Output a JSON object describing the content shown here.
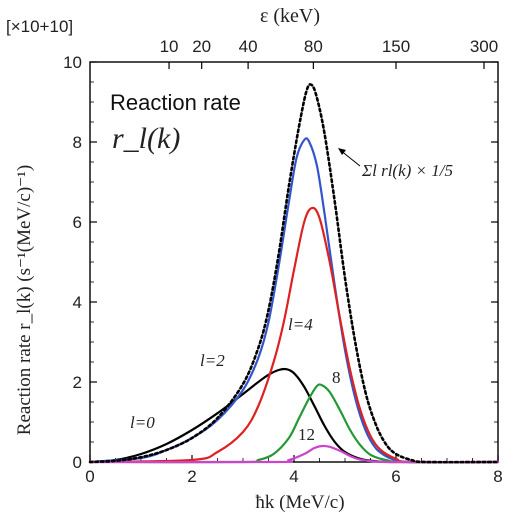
{
  "chart_data": {
    "type": "line",
    "title": "Reaction rate",
    "subtitle": "r_l(k)",
    "y_multiplier": "[×10+10]",
    "xlabel": "ħk (MeV/c)",
    "ylabel": "Reaction rate r_l(k) (s⁻¹(MeV/c)⁻¹)",
    "top_axis_label": "ε (keV)",
    "xlim": [
      0,
      8
    ],
    "ylim": [
      0,
      10
    ],
    "x_ticks": [
      0,
      2,
      4,
      6,
      8
    ],
    "y_ticks": [
      0,
      2,
      4,
      6,
      8,
      10
    ],
    "top_ticks": [
      {
        "label": "10",
        "k": 1.55
      },
      {
        "label": "20",
        "k": 2.19
      },
      {
        "label": "40",
        "k": 3.1
      },
      {
        "label": "80",
        "k": 4.38
      },
      {
        "label": "150",
        "k": 6.0
      },
      {
        "label": "300",
        "k": 8.48
      }
    ],
    "series": [
      {
        "name": "l=0",
        "color": "#000000",
        "style": "solid",
        "points": [
          [
            0,
            0
          ],
          [
            0.5,
            0.05
          ],
          [
            1.0,
            0.2
          ],
          [
            1.5,
            0.45
          ],
          [
            2.0,
            0.8
          ],
          [
            2.5,
            1.22
          ],
          [
            3.0,
            1.7
          ],
          [
            3.3,
            2.0
          ],
          [
            3.5,
            2.18
          ],
          [
            3.7,
            2.3
          ],
          [
            3.85,
            2.32
          ],
          [
            4.0,
            2.22
          ],
          [
            4.2,
            1.88
          ],
          [
            4.4,
            1.4
          ],
          [
            4.6,
            0.9
          ],
          [
            4.8,
            0.5
          ],
          [
            5.0,
            0.25
          ],
          [
            5.3,
            0.08
          ],
          [
            5.6,
            0.02
          ],
          [
            6.0,
            0
          ],
          [
            8,
            0
          ]
        ]
      },
      {
        "name": "l=2",
        "color": "#3355cc",
        "style": "solid",
        "points": [
          [
            0,
            0
          ],
          [
            1.0,
            0.1
          ],
          [
            1.5,
            0.3
          ],
          [
            2.0,
            0.6
          ],
          [
            2.5,
            1.05
          ],
          [
            3.0,
            1.8
          ],
          [
            3.3,
            2.6
          ],
          [
            3.5,
            3.5
          ],
          [
            3.7,
            4.9
          ],
          [
            3.9,
            6.5
          ],
          [
            4.05,
            7.6
          ],
          [
            4.2,
            8.05
          ],
          [
            4.3,
            8.0
          ],
          [
            4.45,
            7.4
          ],
          [
            4.6,
            6.2
          ],
          [
            4.8,
            4.4
          ],
          [
            5.0,
            2.8
          ],
          [
            5.2,
            1.6
          ],
          [
            5.4,
            0.8
          ],
          [
            5.6,
            0.35
          ],
          [
            5.8,
            0.15
          ],
          [
            6.0,
            0.05
          ],
          [
            6.3,
            0
          ],
          [
            8,
            0
          ]
        ]
      },
      {
        "name": "l=4",
        "color": "#dd2222",
        "style": "solid",
        "points": [
          [
            0,
            0
          ],
          [
            2.0,
            0.05
          ],
          [
            2.5,
            0.25
          ],
          [
            3.0,
            0.75
          ],
          [
            3.3,
            1.4
          ],
          [
            3.6,
            2.5
          ],
          [
            3.8,
            3.5
          ],
          [
            4.0,
            4.8
          ],
          [
            4.2,
            6.0
          ],
          [
            4.35,
            6.35
          ],
          [
            4.5,
            6.1
          ],
          [
            4.7,
            5.0
          ],
          [
            4.9,
            3.6
          ],
          [
            5.1,
            2.3
          ],
          [
            5.3,
            1.3
          ],
          [
            5.5,
            0.65
          ],
          [
            5.7,
            0.3
          ],
          [
            6.0,
            0.08
          ],
          [
            6.3,
            0
          ],
          [
            8,
            0
          ]
        ]
      },
      {
        "name": "8",
        "color": "#229933",
        "style": "solid",
        "points": [
          [
            0,
            0
          ],
          [
            3.0,
            0
          ],
          [
            3.3,
            0.05
          ],
          [
            3.6,
            0.2
          ],
          [
            3.9,
            0.6
          ],
          [
            4.1,
            1.1
          ],
          [
            4.3,
            1.6
          ],
          [
            4.45,
            1.9
          ],
          [
            4.55,
            1.92
          ],
          [
            4.7,
            1.75
          ],
          [
            4.9,
            1.3
          ],
          [
            5.1,
            0.8
          ],
          [
            5.3,
            0.42
          ],
          [
            5.5,
            0.18
          ],
          [
            5.8,
            0.05
          ],
          [
            6.2,
            0
          ],
          [
            8,
            0
          ]
        ]
      },
      {
        "name": "12",
        "color": "#cc44cc",
        "style": "solid",
        "points": [
          [
            0,
            0
          ],
          [
            3.6,
            0
          ],
          [
            3.9,
            0.05
          ],
          [
            4.2,
            0.2
          ],
          [
            4.4,
            0.35
          ],
          [
            4.55,
            0.4
          ],
          [
            4.7,
            0.38
          ],
          [
            4.9,
            0.28
          ],
          [
            5.1,
            0.15
          ],
          [
            5.3,
            0.06
          ],
          [
            5.6,
            0.01
          ],
          [
            6.0,
            0
          ],
          [
            8,
            0
          ]
        ]
      },
      {
        "name": "Σ_l r_l(k) × 1/5",
        "color": "#000000",
        "style": "dotted",
        "points": [
          [
            0,
            0
          ],
          [
            0.5,
            0.03
          ],
          [
            1.0,
            0.12
          ],
          [
            1.5,
            0.3
          ],
          [
            2.0,
            0.6
          ],
          [
            2.5,
            1.1
          ],
          [
            3.0,
            1.95
          ],
          [
            3.3,
            2.85
          ],
          [
            3.5,
            3.8
          ],
          [
            3.7,
            5.2
          ],
          [
            3.9,
            6.9
          ],
          [
            4.1,
            8.4
          ],
          [
            4.25,
            9.3
          ],
          [
            4.35,
            9.42
          ],
          [
            4.45,
            9.1
          ],
          [
            4.6,
            8.2
          ],
          [
            4.8,
            6.5
          ],
          [
            5.0,
            4.6
          ],
          [
            5.2,
            3.0
          ],
          [
            5.4,
            1.75
          ],
          [
            5.6,
            0.95
          ],
          [
            5.8,
            0.45
          ],
          [
            6.0,
            0.2
          ],
          [
            6.3,
            0.05
          ],
          [
            6.6,
            0
          ],
          [
            8,
            0
          ]
        ]
      }
    ],
    "annotations": {
      "l0": "l=0",
      "l2": "l=2",
      "l4": "l=4",
      "l8": "8",
      "l12": "12",
      "sum": "Σl rl(k) × 1/5"
    }
  }
}
